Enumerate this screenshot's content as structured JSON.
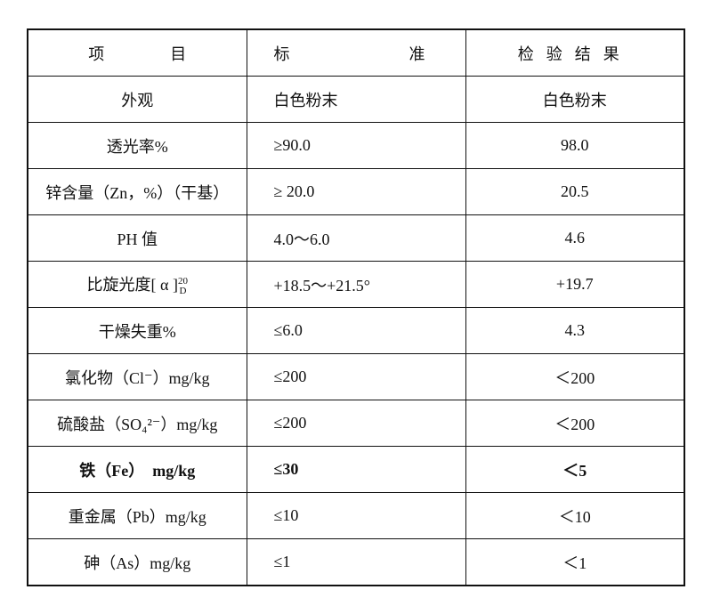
{
  "table": {
    "header": [
      "项目",
      "标准",
      "检验结果"
    ],
    "rows": [
      [
        "外观",
        "白色粉末",
        "白色粉末"
      ],
      [
        "透光率%",
        "≥90.0",
        "98.0"
      ],
      [
        "锌含量（Zn，%）（干基）",
        "≥ 20.0",
        "20.5"
      ],
      [
        "PH 值",
        "4.0～6.0",
        "4.6"
      ],
      [
        {
          "text": "比旋光度[ α ]",
          "sup": "20",
          "sub": "D"
        },
        "+18.5～+21.5°",
        "+19.7"
      ],
      [
        "干燥失重%",
        "≤6.0",
        "4.3"
      ],
      [
        "氯化物（Cl⁻）mg/kg",
        "≤200",
        "＜200"
      ],
      [
        "硫酸盐（SO₄²⁻）mg/kg",
        "≤200",
        "＜200"
      ],
      [
        "铁（Fe）　mg/kg",
        "≤30",
        "＜5"
      ],
      [
        "重金属（Pb）mg/kg",
        "≤10",
        "＜10"
      ],
      [
        "砷（As）mg/kg",
        "≤1",
        "＜1"
      ]
    ],
    "bold_rows": [
      8
    ]
  }
}
